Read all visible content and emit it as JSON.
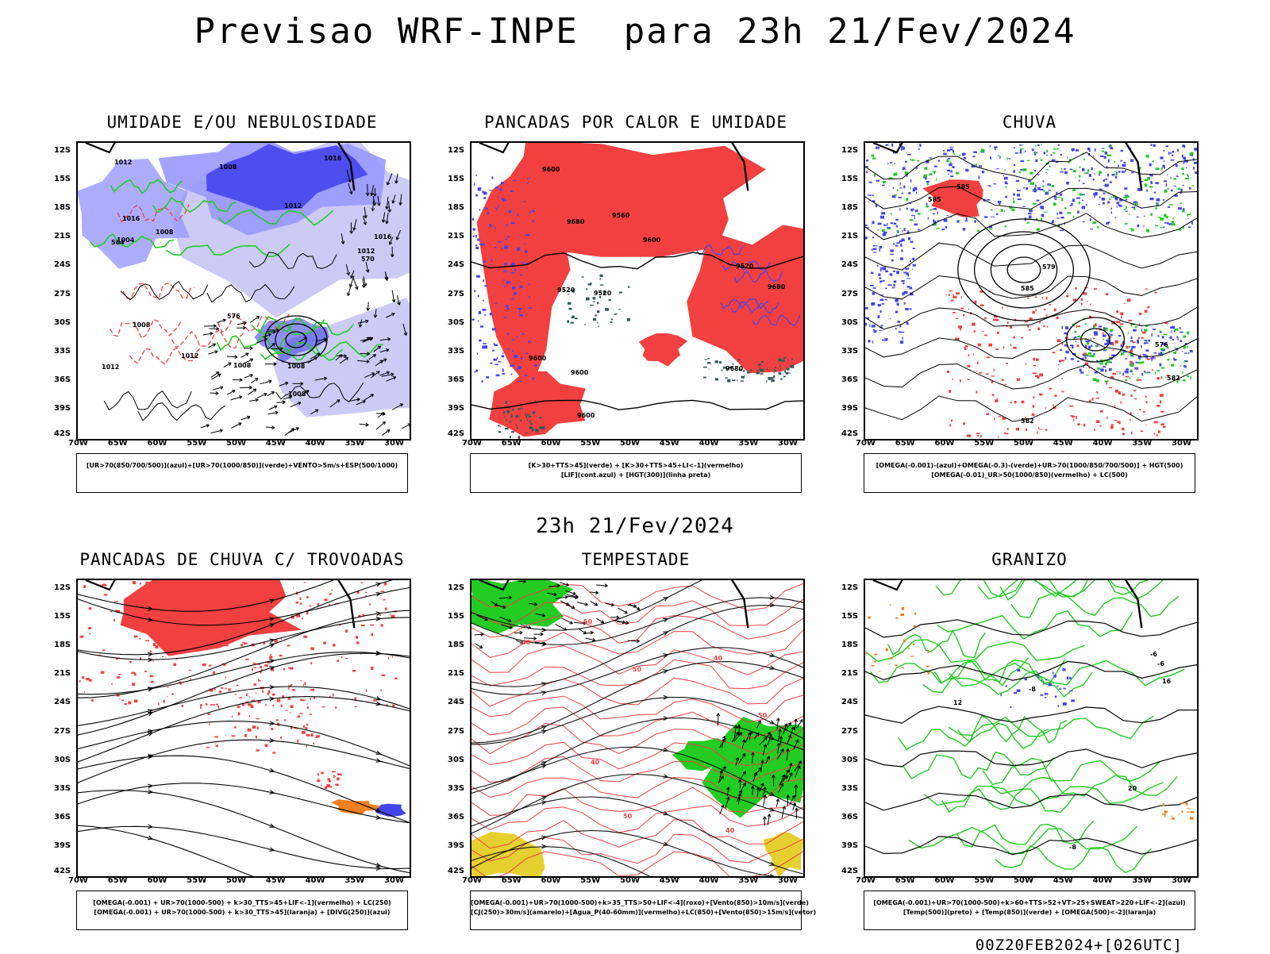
{
  "title": "Previsao WRF-INPE  para 23h 21/Fev/2024",
  "subtitle": "23h 21/Fev/2024",
  "footer": "00Z20FEB2024+[026UTC]",
  "lat_labels": [
    "12S",
    "15S",
    "18S",
    "21S",
    "24S",
    "27S",
    "30S",
    "33S",
    "36S",
    "39S",
    "42S"
  ],
  "lon_labels": [
    "70W",
    "65W",
    "60W",
    "55W",
    "50W",
    "45W",
    "40W",
    "35W",
    "30W"
  ],
  "colors": {
    "blue": "#4444ee",
    "light_blue": "#9999ff",
    "lavender": "#c8c8f5",
    "green": "#22cc22",
    "red": "#f24040",
    "orange": "#f08020",
    "yellow": "#e6d030",
    "dark_teal": "#2f5a5a",
    "black": "#000000"
  },
  "panels": [
    {
      "title": "UMIDADE E/OU NEBULOSIDADE",
      "legend": [
        "[UR>70(850/700/500)](azul)+[UR>70(1000/850)](verde)+VENTO>5m/s+ESP(500/1000)"
      ],
      "contour_labels": [
        "1012",
        "1012",
        "1016",
        "1008",
        "1008",
        "1008",
        "1012",
        "1008",
        "1004",
        "1012",
        "1012",
        "1016",
        "1008",
        "1008",
        "1016",
        "576",
        "570",
        "564"
      ]
    },
    {
      "title": "PANCADAS POR CALOR E UMIDADE",
      "legend": [
        "[K>30+TTS>45](verde) + [K>30+TTS>45+LI<-1](vermelho)",
        "[LIF](cont.azul) + [HGT(300)](linha preta)"
      ],
      "contour_labels": [
        "9680",
        "9680",
        "9680",
        "9600",
        "9600",
        "9560",
        "9520",
        "9600",
        "9600",
        "9520",
        "9520",
        "9600"
      ]
    },
    {
      "title": "CHUVA",
      "legend": [
        "[OMEGA(-0.001)-(azul)+OMEGA(-0.3)-(verde)+UR>70(1000/850/700/500)] + HGT(500)",
        "[OMEGA(-0.01)_UR>50(1000/850)(vermelho) + LC(500)"
      ],
      "contour_labels": [
        "585",
        "585",
        "585",
        "582",
        "579",
        "576",
        "582"
      ]
    },
    {
      "title": "PANCADAS DE CHUVA C/ TROVOADAS",
      "legend": [
        "[OMEGA(-0.001) + UR>70(1000-500) + k>30_TTS>45+LIF<-1](vermelho) + LC(250)",
        "[OMEGA(-0.001) + UR>70(1000-500) + k>30_TTS>45](laranja) + [DIVG(250)](azul)"
      ],
      "contour_labels": []
    },
    {
      "title": "TEMPESTADE",
      "legend": [
        "[OMEGA(-0.001)+UR>70(1000-500)+k>35_TTS>50+LIF<-4](roxo)+[Vento(850)>10m/s](verde)",
        "[CJ(250)>30m/s](amarelo)+[Agua_P(40-60mm)](vermelho)+LC(850)+[Vento(850)>15m/s](vetor)"
      ],
      "contour_labels": [
        "40",
        "40",
        "50",
        "50",
        "50",
        "40",
        "40",
        "50"
      ]
    },
    {
      "title": "GRANIZO",
      "legend": [
        "[OMEGA(-0.001)+UR>70(1000-500)+k>60+TTS>52+VT>25+SWEAT>220+LIF<-2](azul)",
        "[Temp(500)](preto) + [Temp(850)](verde) + [OMEGA(500)<-2](laranja)"
      ],
      "contour_labels": [
        "-6",
        "-6",
        "-8",
        "-8",
        "12",
        "16",
        "20"
      ]
    }
  ]
}
